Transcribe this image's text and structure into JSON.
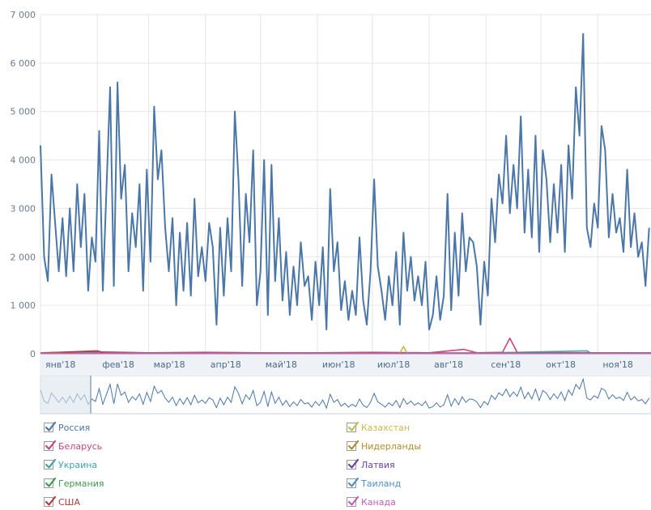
{
  "chart_data": {
    "type": "line",
    "title": "",
    "xlabel": "",
    "ylabel": "",
    "ylim": [
      0,
      7000
    ],
    "y_ticks": [
      0,
      1000,
      2000,
      3000,
      4000,
      5000,
      6000,
      7000
    ],
    "y_tick_labels": [
      "0",
      "1 000",
      "2 000",
      "3 000",
      "4 000",
      "5 000",
      "6 000",
      "7 000"
    ],
    "x_range": [
      "2018-01-01",
      "2018-11-30"
    ],
    "x_tick_labels": [
      {
        "date": "2018-01-01",
        "label": "янв'18"
      },
      {
        "date": "2018-02-01",
        "label": "фев'18"
      },
      {
        "date": "2018-03-01",
        "label": "мар'18"
      },
      {
        "date": "2018-04-01",
        "label": "апр'18"
      },
      {
        "date": "2018-05-01",
        "label": "май'18"
      },
      {
        "date": "2018-06-01",
        "label": "июн'18"
      },
      {
        "date": "2018-07-01",
        "label": "июл'18"
      },
      {
        "date": "2018-08-01",
        "label": "авг'18"
      },
      {
        "date": "2018-09-01",
        "label": "сен'18"
      },
      {
        "date": "2018-10-01",
        "label": "окт'18"
      },
      {
        "date": "2018-11-01",
        "label": "ноя'18"
      }
    ],
    "grid": true,
    "legend_position": "bottom",
    "series": [
      {
        "name": "Россия",
        "color": "#4a76a8",
        "visible": true,
        "points": [
          [
            "2018-01-01",
            4300
          ],
          [
            "2018-01-03",
            2000
          ],
          [
            "2018-01-05",
            1500
          ],
          [
            "2018-01-07",
            3700
          ],
          [
            "2018-01-09",
            2700
          ],
          [
            "2018-01-11",
            1700
          ],
          [
            "2018-01-13",
            2800
          ],
          [
            "2018-01-15",
            1600
          ],
          [
            "2018-01-17",
            3000
          ],
          [
            "2018-01-19",
            1700
          ],
          [
            "2018-01-21",
            3500
          ],
          [
            "2018-01-23",
            2200
          ],
          [
            "2018-01-25",
            3300
          ],
          [
            "2018-01-27",
            1300
          ],
          [
            "2018-01-29",
            2400
          ],
          [
            "2018-01-31",
            1900
          ],
          [
            "2018-02-02",
            4600
          ],
          [
            "2018-02-04",
            1300
          ],
          [
            "2018-02-06",
            3400
          ],
          [
            "2018-02-08",
            5500
          ],
          [
            "2018-02-10",
            1400
          ],
          [
            "2018-02-12",
            5600
          ],
          [
            "2018-02-14",
            3200
          ],
          [
            "2018-02-16",
            3900
          ],
          [
            "2018-02-18",
            1700
          ],
          [
            "2018-02-20",
            2900
          ],
          [
            "2018-02-22",
            2200
          ],
          [
            "2018-02-24",
            3500
          ],
          [
            "2018-02-26",
            1300
          ],
          [
            "2018-02-28",
            3800
          ],
          [
            "2018-03-02",
            1900
          ],
          [
            "2018-03-04",
            5100
          ],
          [
            "2018-03-06",
            3600
          ],
          [
            "2018-03-08",
            4200
          ],
          [
            "2018-03-10",
            2600
          ],
          [
            "2018-03-12",
            1700
          ],
          [
            "2018-03-14",
            2800
          ],
          [
            "2018-03-16",
            1000
          ],
          [
            "2018-03-18",
            2500
          ],
          [
            "2018-03-20",
            1300
          ],
          [
            "2018-03-22",
            2700
          ],
          [
            "2018-03-24",
            1200
          ],
          [
            "2018-03-26",
            3200
          ],
          [
            "2018-03-28",
            1600
          ],
          [
            "2018-03-30",
            2200
          ],
          [
            "2018-04-01",
            1500
          ],
          [
            "2018-04-03",
            2700
          ],
          [
            "2018-04-05",
            2200
          ],
          [
            "2018-04-07",
            600
          ],
          [
            "2018-04-09",
            2600
          ],
          [
            "2018-04-11",
            1200
          ],
          [
            "2018-04-13",
            2800
          ],
          [
            "2018-04-15",
            1700
          ],
          [
            "2018-04-17",
            5000
          ],
          [
            "2018-04-19",
            3600
          ],
          [
            "2018-04-21",
            1400
          ],
          [
            "2018-04-23",
            3300
          ],
          [
            "2018-04-25",
            2300
          ],
          [
            "2018-04-27",
            4200
          ],
          [
            "2018-04-29",
            1000
          ],
          [
            "2018-05-01",
            1700
          ],
          [
            "2018-05-03",
            4000
          ],
          [
            "2018-05-05",
            800
          ],
          [
            "2018-05-07",
            3900
          ],
          [
            "2018-05-09",
            1500
          ],
          [
            "2018-05-11",
            2800
          ],
          [
            "2018-05-13",
            1100
          ],
          [
            "2018-05-15",
            2100
          ],
          [
            "2018-05-17",
            800
          ],
          [
            "2018-05-19",
            1800
          ],
          [
            "2018-05-21",
            1000
          ],
          [
            "2018-05-23",
            2300
          ],
          [
            "2018-05-25",
            1400
          ],
          [
            "2018-05-27",
            1600
          ],
          [
            "2018-05-29",
            700
          ],
          [
            "2018-05-31",
            1900
          ],
          [
            "2018-06-02",
            1000
          ],
          [
            "2018-06-04",
            2200
          ],
          [
            "2018-06-06",
            500
          ],
          [
            "2018-06-08",
            3400
          ],
          [
            "2018-06-10",
            1700
          ],
          [
            "2018-06-12",
            2300
          ],
          [
            "2018-06-14",
            900
          ],
          [
            "2018-06-16",
            1500
          ],
          [
            "2018-06-18",
            700
          ],
          [
            "2018-06-20",
            1300
          ],
          [
            "2018-06-22",
            800
          ],
          [
            "2018-06-24",
            2400
          ],
          [
            "2018-06-26",
            1100
          ],
          [
            "2018-06-28",
            600
          ],
          [
            "2018-06-30",
            1700
          ],
          [
            "2018-07-02",
            3600
          ],
          [
            "2018-07-04",
            1800
          ],
          [
            "2018-07-06",
            1300
          ],
          [
            "2018-07-08",
            700
          ],
          [
            "2018-07-10",
            1600
          ],
          [
            "2018-07-12",
            1000
          ],
          [
            "2018-07-14",
            2100
          ],
          [
            "2018-07-16",
            600
          ],
          [
            "2018-07-18",
            2500
          ],
          [
            "2018-07-20",
            1300
          ],
          [
            "2018-07-22",
            2000
          ],
          [
            "2018-07-24",
            1100
          ],
          [
            "2018-07-26",
            1600
          ],
          [
            "2018-07-28",
            1000
          ],
          [
            "2018-07-30",
            1900
          ],
          [
            "2018-08-01",
            500
          ],
          [
            "2018-08-03",
            800
          ],
          [
            "2018-08-05",
            1600
          ],
          [
            "2018-08-07",
            700
          ],
          [
            "2018-08-09",
            1200
          ],
          [
            "2018-08-11",
            3300
          ],
          [
            "2018-08-13",
            900
          ],
          [
            "2018-08-15",
            2500
          ],
          [
            "2018-08-17",
            1200
          ],
          [
            "2018-08-19",
            2900
          ],
          [
            "2018-08-21",
            1700
          ],
          [
            "2018-08-23",
            2400
          ],
          [
            "2018-08-25",
            2300
          ],
          [
            "2018-08-27",
            1800
          ],
          [
            "2018-08-29",
            600
          ],
          [
            "2018-08-31",
            1900
          ],
          [
            "2018-09-02",
            1200
          ],
          [
            "2018-09-04",
            3200
          ],
          [
            "2018-09-06",
            2300
          ],
          [
            "2018-09-08",
            3700
          ],
          [
            "2018-09-10",
            3100
          ],
          [
            "2018-09-12",
            4500
          ],
          [
            "2018-09-14",
            2900
          ],
          [
            "2018-09-16",
            3900
          ],
          [
            "2018-09-18",
            3000
          ],
          [
            "2018-09-20",
            4900
          ],
          [
            "2018-09-22",
            2500
          ],
          [
            "2018-09-24",
            3800
          ],
          [
            "2018-09-26",
            2400
          ],
          [
            "2018-09-28",
            4500
          ],
          [
            "2018-09-30",
            2100
          ],
          [
            "2018-10-02",
            4200
          ],
          [
            "2018-10-04",
            3600
          ],
          [
            "2018-10-06",
            2300
          ],
          [
            "2018-10-08",
            3500
          ],
          [
            "2018-10-10",
            2500
          ],
          [
            "2018-10-12",
            3900
          ],
          [
            "2018-10-14",
            2100
          ],
          [
            "2018-10-16",
            4300
          ],
          [
            "2018-10-18",
            3200
          ],
          [
            "2018-10-20",
            5500
          ],
          [
            "2018-10-22",
            4500
          ],
          [
            "2018-10-24",
            6600
          ],
          [
            "2018-10-26",
            2600
          ],
          [
            "2018-10-28",
            2200
          ],
          [
            "2018-10-30",
            3100
          ],
          [
            "2018-11-01",
            2600
          ],
          [
            "2018-11-03",
            4700
          ],
          [
            "2018-11-05",
            4200
          ],
          [
            "2018-11-07",
            2400
          ],
          [
            "2018-11-09",
            3300
          ],
          [
            "2018-11-11",
            2500
          ],
          [
            "2018-11-13",
            2800
          ],
          [
            "2018-11-15",
            2100
          ],
          [
            "2018-11-17",
            3800
          ],
          [
            "2018-11-19",
            2200
          ],
          [
            "2018-11-21",
            2900
          ],
          [
            "2018-11-23",
            2000
          ],
          [
            "2018-11-25",
            2300
          ],
          [
            "2018-11-27",
            1400
          ],
          [
            "2018-11-29",
            2600
          ]
        ]
      },
      {
        "name": "Беларусь",
        "color": "#c8457d",
        "visible": true,
        "points": [
          [
            "2018-01-01",
            20
          ],
          [
            "2018-02-01",
            40
          ],
          [
            "2018-03-01",
            20
          ],
          [
            "2018-04-01",
            30
          ],
          [
            "2018-05-01",
            20
          ],
          [
            "2018-06-01",
            20
          ],
          [
            "2018-07-01",
            30
          ],
          [
            "2018-08-01",
            20
          ],
          [
            "2018-08-20",
            90
          ],
          [
            "2018-08-27",
            20
          ],
          [
            "2018-09-10",
            30
          ],
          [
            "2018-09-14",
            320
          ],
          [
            "2018-09-18",
            30
          ],
          [
            "2018-10-01",
            20
          ],
          [
            "2018-11-01",
            20
          ],
          [
            "2018-11-30",
            20
          ]
        ]
      },
      {
        "name": "Украина",
        "color": "#3fa3a3",
        "visible": true,
        "points": [
          [
            "2018-01-01",
            20
          ],
          [
            "2018-03-01",
            15
          ],
          [
            "2018-05-01",
            15
          ],
          [
            "2018-07-01",
            15
          ],
          [
            "2018-09-01",
            15
          ],
          [
            "2018-10-26",
            60
          ],
          [
            "2018-10-28",
            20
          ],
          [
            "2018-11-30",
            15
          ]
        ]
      },
      {
        "name": "Германия",
        "color": "#3e9a4c",
        "visible": true,
        "points": [
          [
            "2018-01-01",
            10
          ],
          [
            "2018-06-01",
            10
          ],
          [
            "2018-11-30",
            10
          ]
        ]
      },
      {
        "name": "США",
        "color": "#b23c3c",
        "visible": true,
        "points": [
          [
            "2018-01-01",
            15
          ],
          [
            "2018-02-01",
            60
          ],
          [
            "2018-02-05",
            15
          ],
          [
            "2018-06-01",
            15
          ],
          [
            "2018-11-30",
            15
          ]
        ]
      },
      {
        "name": "Казахстан",
        "color": "#c9b84a",
        "visible": true,
        "points": [
          [
            "2018-01-01",
            10
          ],
          [
            "2018-07-16",
            10
          ],
          [
            "2018-07-18",
            150
          ],
          [
            "2018-07-20",
            10
          ],
          [
            "2018-11-30",
            10
          ]
        ]
      },
      {
        "name": "Нидерланды",
        "color": "#b28b2c",
        "visible": true,
        "points": [
          [
            "2018-01-01",
            5
          ],
          [
            "2018-11-30",
            5
          ]
        ]
      },
      {
        "name": "Латвия",
        "color": "#6b3fa0",
        "visible": true,
        "points": [
          [
            "2018-01-01",
            5
          ],
          [
            "2018-11-30",
            5
          ]
        ]
      },
      {
        "name": "Таиланд",
        "color": "#4a90c8",
        "visible": true,
        "points": [
          [
            "2018-01-01",
            5
          ],
          [
            "2018-11-30",
            5
          ]
        ]
      },
      {
        "name": "Канада",
        "color": "#c260b8",
        "visible": true,
        "points": [
          [
            "2018-01-01",
            5
          ],
          [
            "2018-11-30",
            5
          ]
        ]
      }
    ]
  }
}
